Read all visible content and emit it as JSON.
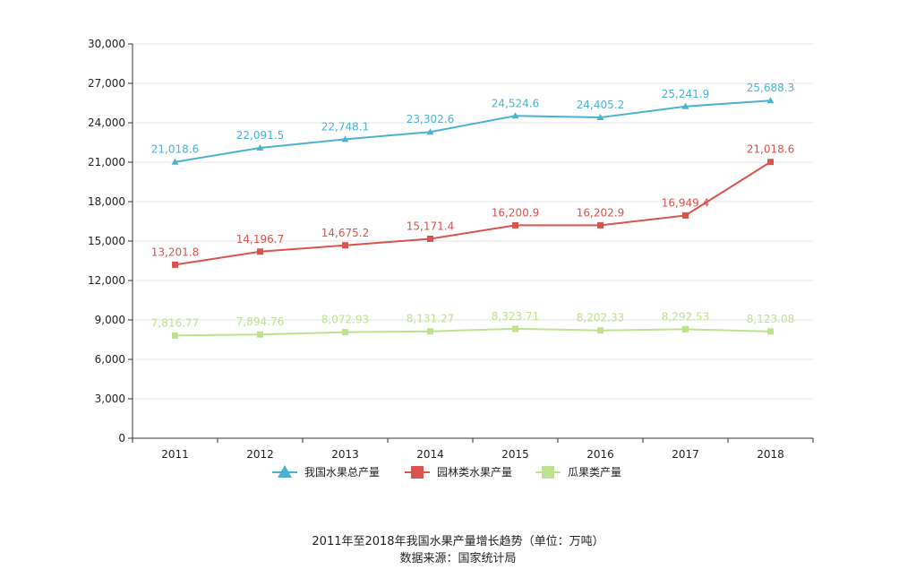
{
  "chart_data": {
    "type": "line",
    "categories": [
      "2011",
      "2012",
      "2013",
      "2014",
      "2015",
      "2016",
      "2017",
      "2018"
    ],
    "ylim": [
      0,
      30000
    ],
    "yticks": [
      0,
      3000,
      6000,
      9000,
      12000,
      15000,
      18000,
      21000,
      24000,
      27000,
      30000
    ],
    "ytick_labels": [
      "0",
      "3,000",
      "6,000",
      "9,000",
      "12,000",
      "15,000",
      "18,000",
      "21,000",
      "24,000",
      "27,000",
      "30,000"
    ],
    "grid": true,
    "legend_position": "bottom-center",
    "series": [
      {
        "name": "我国水果总产量",
        "color": "#4bb3d0",
        "marker": "triangle",
        "values": [
          21018.6,
          22091.5,
          22748.1,
          23302.6,
          24524.6,
          24405.2,
          25241.9,
          25688.3
        ],
        "labels": [
          "21,018.6",
          "22,091.5",
          "22,748.1",
          "23,302.6",
          "24,524.6",
          "24,405.2",
          "25,241.9",
          "25,688.3"
        ]
      },
      {
        "name": "园林类水果产量",
        "color": "#d9534f",
        "marker": "square",
        "values": [
          13201.8,
          14196.7,
          14675.2,
          15171.4,
          16200.9,
          16202.9,
          16949.4,
          21018.6
        ],
        "labels": [
          "13,201.8",
          "14,196.7",
          "14,675.2",
          "15,171.4",
          "16,200.9",
          "16,202.9",
          "16,949.4",
          "21,018.6"
        ]
      },
      {
        "name": "瓜果类产量",
        "color": "#bfe28f",
        "marker": "square",
        "values": [
          7816.77,
          7894.76,
          8072.93,
          8131.27,
          8323.71,
          8202.33,
          8292.53,
          8123.08
        ],
        "labels": [
          "7,816.77",
          "7,894.76",
          "8,072.93",
          "8,131.27",
          "8,323.71",
          "8,202.33",
          "8,292.53",
          "8,123.08"
        ]
      }
    ]
  },
  "caption": {
    "title": "2011年至2018年我国水果产量增长趋势（单位：万吨）",
    "source": "数据来源：国家统计局"
  }
}
